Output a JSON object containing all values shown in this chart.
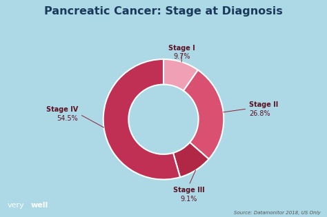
{
  "title": "Pancreatic Cancer: Stage at Diagnosis",
  "slices": [
    9.7,
    26.8,
    9.1,
    54.5
  ],
  "labels": [
    "Stage I",
    "Stage II",
    "Stage III",
    "Stage IV"
  ],
  "percentages": [
    "9.7%",
    "26.8%",
    "9.1%",
    "54.5%"
  ],
  "colors": [
    "#f0a0b5",
    "#d95070",
    "#b02845",
    "#c03055"
  ],
  "background_color": "#add8e6",
  "title_color": "#1a3a5c",
  "label_color": "#5a1020",
  "source_text": "Source: Datamonitor 2018, US Only",
  "brand_normal": "very",
  "brand_bold": "well",
  "brand_bg": "#1a3a5c",
  "donut_width": 0.42,
  "start_angle": 90,
  "figsize": [
    4.74,
    3.15
  ],
  "dpi": 100
}
